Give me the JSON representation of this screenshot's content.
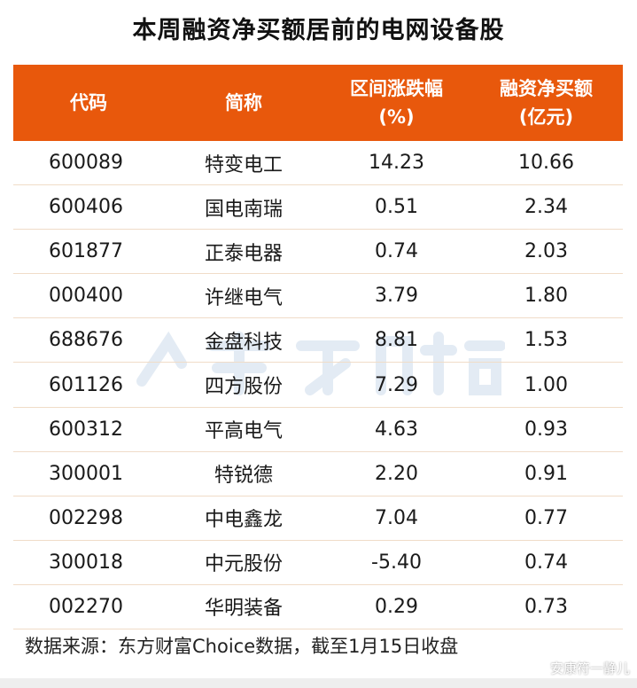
{
  "chart_data": {
    "type": "table",
    "title": "本周融资净买额居前的电网设备股",
    "columns": [
      "代码",
      "简称",
      "区间涨跌幅\n(%)",
      "融资净买额\n(亿元)"
    ],
    "columns_display": [
      [
        "代码"
      ],
      [
        "简称"
      ],
      [
        "区间涨跌幅",
        "(%)"
      ],
      [
        "融资净买额",
        "(亿元)"
      ]
    ],
    "rows": [
      [
        "600089",
        "特变电工",
        "14.23",
        "10.66"
      ],
      [
        "600406",
        "国电南瑞",
        "0.51",
        "2.34"
      ],
      [
        "601877",
        "正泰电器",
        "0.74",
        "2.03"
      ],
      [
        "000400",
        "许继电气",
        "3.79",
        "1.80"
      ],
      [
        "688676",
        "金盘科技",
        "8.81",
        "1.53"
      ],
      [
        "601126",
        "四方股份",
        "7.29",
        "1.00"
      ],
      [
        "600312",
        "平高电气",
        "4.63",
        "0.93"
      ],
      [
        "300001",
        "特锐德",
        "2.20",
        "0.91"
      ],
      [
        "002298",
        "中电鑫龙",
        "7.04",
        "0.77"
      ],
      [
        "300018",
        "中元股份",
        "-5.40",
        "0.74"
      ],
      [
        "002270",
        "华明装备",
        "0.29",
        "0.73"
      ]
    ],
    "header_color": "#E8580C"
  },
  "source": "数据来源：东方财富Choice数据，截至1月15日收盘",
  "watermark": "东方财富",
  "credit": "安康符一静儿"
}
